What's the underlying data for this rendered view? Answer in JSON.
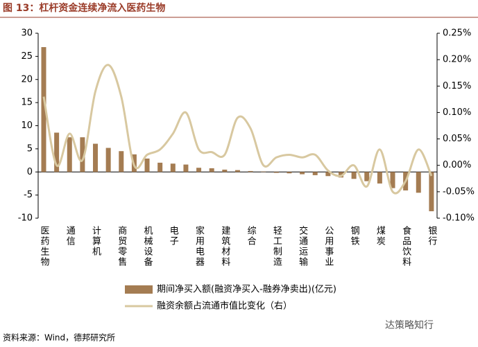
{
  "chart_data": {
    "type": "bar_line",
    "title": "图 13：杠杆资金连续净流入医药生物",
    "categories": [
      "医药生物",
      null,
      "通信",
      null,
      "计算机",
      null,
      "商贸零售",
      null,
      "机械设备",
      null,
      "电子",
      null,
      "家用电器",
      null,
      "建筑材料",
      null,
      "综合",
      null,
      "轻工制造",
      null,
      "交通运输",
      null,
      "公用事业",
      null,
      "钢铁",
      null,
      "煤炭",
      null,
      "食品饮料",
      null,
      "银行"
    ],
    "series": [
      {
        "name": "期间净买入额(融资净买入-融券净卖出)(亿元)",
        "type": "bar",
        "color": "#a47c52",
        "values": [
          27,
          8.5,
          7.5,
          7.5,
          6.1,
          5.2,
          4.5,
          3.8,
          2.9,
          2.0,
          1.8,
          1.6,
          0.9,
          0.8,
          0.5,
          0.4,
          0.2,
          0.1,
          -0.2,
          -0.3,
          -0.5,
          -0.7,
          -0.9,
          -1.2,
          -1.5,
          -2.0,
          -2.5,
          -3.5,
          -4.0,
          -4.5,
          -8.5
        ]
      },
      {
        "name": "融资余额占流通市值比变化（右）",
        "type": "line",
        "axis": "y2",
        "color": "#d8c8a0",
        "values": [
          0.13,
          0.0,
          0.06,
          0.01,
          0.14,
          0.19,
          0.13,
          0.0,
          0.02,
          0.03,
          0.06,
          0.1,
          0.03,
          0.025,
          0.02,
          0.09,
          0.07,
          0.0,
          0.015,
          0.02,
          0.015,
          0.02,
          -0.01,
          -0.02,
          0.0,
          -0.04,
          0.03,
          -0.05,
          -0.03,
          0.03,
          -0.02
        ]
      }
    ],
    "ylim": [
      -10,
      30
    ],
    "yticks": [
      -10,
      -5,
      0,
      5,
      10,
      15,
      20,
      25,
      30
    ],
    "y2lim": [
      -0.1,
      0.25
    ],
    "y2ticks": [
      {
        "value": -0.1,
        "label": "-0.10%"
      },
      {
        "value": -0.05,
        "label": "-0.05%"
      },
      {
        "value": 0,
        "label": "0.00%"
      },
      {
        "value": 0.05,
        "label": "0.05%"
      },
      {
        "value": 0.1,
        "label": "0.10%"
      },
      {
        "value": 0.15,
        "label": "0.15%"
      },
      {
        "value": 0.2,
        "label": "0.20%"
      },
      {
        "value": 0.25,
        "label": "0.25%"
      }
    ],
    "source": "资料来源：Wind，德邦研究所",
    "watermark": "达策略知行"
  }
}
